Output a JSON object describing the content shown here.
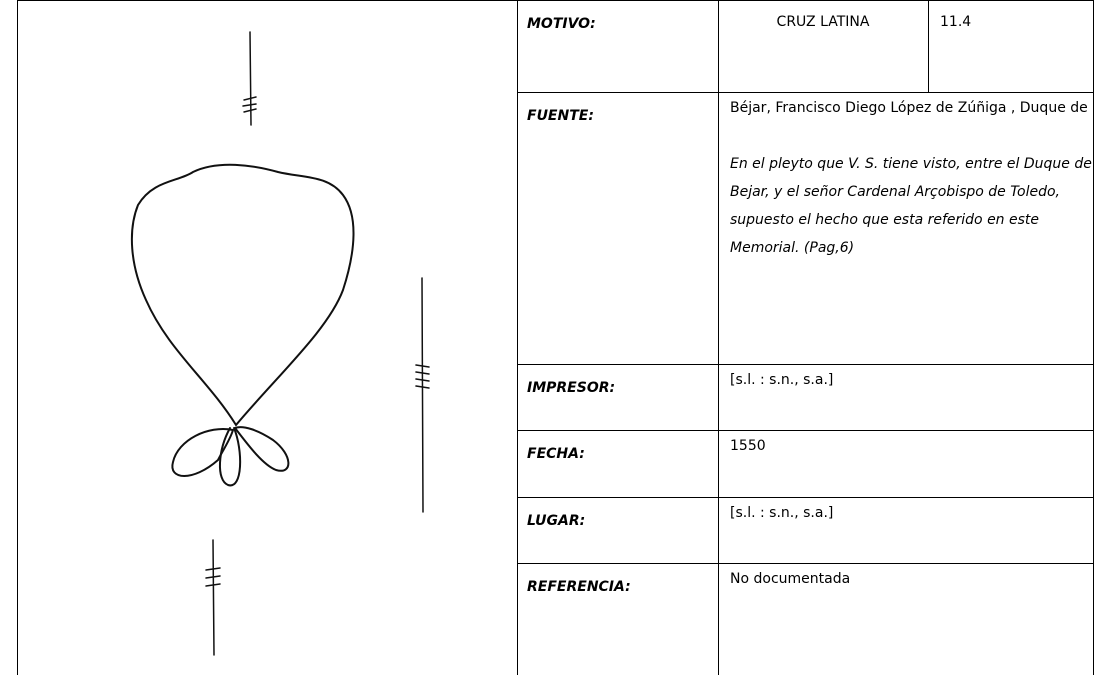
{
  "motivo": {
    "label": "MOTIVO:",
    "value": "CRUZ LATINA",
    "code": "11.4"
  },
  "fuente": {
    "label": "FUENTE:",
    "author": "Béjar, Francisco Diego López de Zúñiga , Duque de",
    "title": "En el pleyto que V. S. tiene visto, entre el Duque de Bejar, y el señor Cardenal Arçobispo de Toledo, supuesto el hecho que esta referido en este Memorial. (Pag,6)"
  },
  "rows": [
    {
      "label": "IMPRESOR:",
      "value": "[s.l. : s.n., s.a.]"
    },
    {
      "label": "FECHA:",
      "value": "1550"
    },
    {
      "label": "LUGAR:",
      "value": "[s.l. : s.n., s.a.]"
    },
    {
      "label": "REFERENCIA:",
      "value": "No documentada"
    }
  ]
}
